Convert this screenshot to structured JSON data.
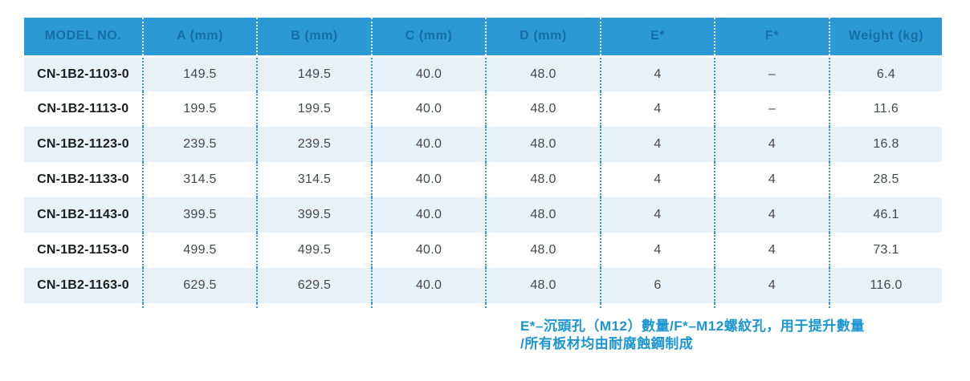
{
  "table": {
    "headers": [
      "MODEL NO.",
      "A (mm)",
      "B (mm)",
      "C (mm)",
      "D (mm)",
      "E*",
      "F*",
      "Weight (kg)"
    ],
    "rows": [
      {
        "model": "CN-1B2-1103-0",
        "values": [
          "149.5",
          "149.5",
          "40.0",
          "48.0",
          "4",
          "–",
          "6.4"
        ]
      },
      {
        "model": "CN-1B2-1113-0",
        "values": [
          "199.5",
          "199.5",
          "40.0",
          "48.0",
          "4",
          "–",
          "11.6"
        ]
      },
      {
        "model": "CN-1B2-1123-0",
        "values": [
          "239.5",
          "239.5",
          "40.0",
          "48.0",
          "4",
          "4",
          "16.8"
        ]
      },
      {
        "model": "CN-1B2-1133-0",
        "values": [
          "314.5",
          "314.5",
          "40.0",
          "48.0",
          "4",
          "4",
          "28.5"
        ]
      },
      {
        "model": "CN-1B2-1143-0",
        "values": [
          "399.5",
          "399.5",
          "40.0",
          "48.0",
          "4",
          "4",
          "46.1"
        ]
      },
      {
        "model": "CN-1B2-1153-0",
        "values": [
          "499.5",
          "499.5",
          "40.0",
          "48.0",
          "4",
          "4",
          "73.1"
        ]
      },
      {
        "model": "CN-1B2-1163-0",
        "values": [
          "629.5",
          "629.5",
          "40.0",
          "48.0",
          "6",
          "4",
          "116.0"
        ]
      }
    ]
  },
  "footnote": {
    "e_label": "E*",
    "e_text": "–沉頭孔（M12）數量/",
    "f_label": "F*",
    "f_text": "–M12螺紋孔，用于提升數量",
    "line2": "/所有板材均由耐腐蝕鋼制成"
  },
  "colors": {
    "header_bg": "#2B99D3",
    "header_text": "#176DA6",
    "row_alt": "#E9F1F8",
    "dot_blue": "#2E9BD6",
    "footnote_blue": "#1C96D3"
  }
}
